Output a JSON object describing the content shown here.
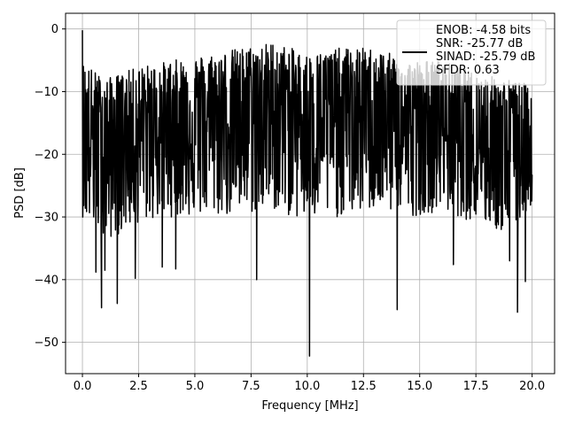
{
  "chart_data": {
    "type": "line",
    "title": "",
    "xlabel": "Frequency [MHz]",
    "ylabel": "PSD [dB]",
    "xlim": [
      -0.75,
      21.0
    ],
    "ylim": [
      -55,
      2.5
    ],
    "xticks": [
      0.0,
      2.5,
      5.0,
      7.5,
      10.0,
      12.5,
      15.0,
      17.5,
      20.0
    ],
    "xtick_labels": [
      "0.0",
      "2.5",
      "5.0",
      "7.5",
      "10.0",
      "12.5",
      "15.0",
      "17.5",
      "20.0"
    ],
    "yticks": [
      0,
      -10,
      -20,
      -30,
      -40,
      -50
    ],
    "ytick_labels": [
      "0",
      "−10",
      "−20",
      "−30",
      "−40",
      "−50"
    ],
    "grid": true,
    "legend_position": "top-right",
    "legend_lines": [
      "ENOB: -4.58 bits",
      "SNR: -25.77 dB",
      "SINAD: -25.79 dB",
      "SFDR: 0.63"
    ],
    "line_color": "#000000",
    "series": [
      {
        "x_start": 0.0,
        "x_end": 20.0,
        "peak_x": 0.0,
        "peak_y": -0.2,
        "envelope_x": [
          0.0,
          1.0,
          2.5,
          4.0,
          5.5,
          7.0,
          8.5,
          10.0,
          11.5,
          13.0,
          14.5,
          16.0,
          17.5,
          19.0,
          20.0
        ],
        "envelope_upper": [
          -5,
          -8,
          -6,
          -5,
          -4,
          -3,
          -2,
          -4,
          -3,
          -3,
          -5,
          -5,
          -7,
          -8,
          -9
        ],
        "envelope_mid": [
          -17,
          -18,
          -16,
          -15,
          -14,
          -14,
          -13,
          -14,
          -14,
          -14,
          -15,
          -15,
          -17,
          -18,
          -18
        ],
        "envelope_lower": [
          -30,
          -34,
          -31,
          -30,
          -30,
          -30,
          -29,
          -31,
          -30,
          -29,
          -30,
          -29,
          -31,
          -33,
          -28
        ],
        "min_dips": [
          {
            "x": 0.85,
            "y": -44.5
          },
          {
            "x": 1.55,
            "y": -43.8
          },
          {
            "x": 7.75,
            "y": -40.0
          },
          {
            "x": 10.1,
            "y": -52.2
          },
          {
            "x": 14.0,
            "y": -44.8
          },
          {
            "x": 19.35,
            "y": -45.2
          },
          {
            "x": 0.6,
            "y": -38.8
          },
          {
            "x": 1.0,
            "y": -38.5
          },
          {
            "x": 2.35,
            "y": -39.8
          },
          {
            "x": 3.55,
            "y": -38.0
          },
          {
            "x": 4.15,
            "y": -38.3
          },
          {
            "x": 16.5,
            "y": -37.6
          },
          {
            "x": 19.0,
            "y": -37.0
          },
          {
            "x": 19.7,
            "y": -40.3
          }
        ]
      }
    ]
  }
}
